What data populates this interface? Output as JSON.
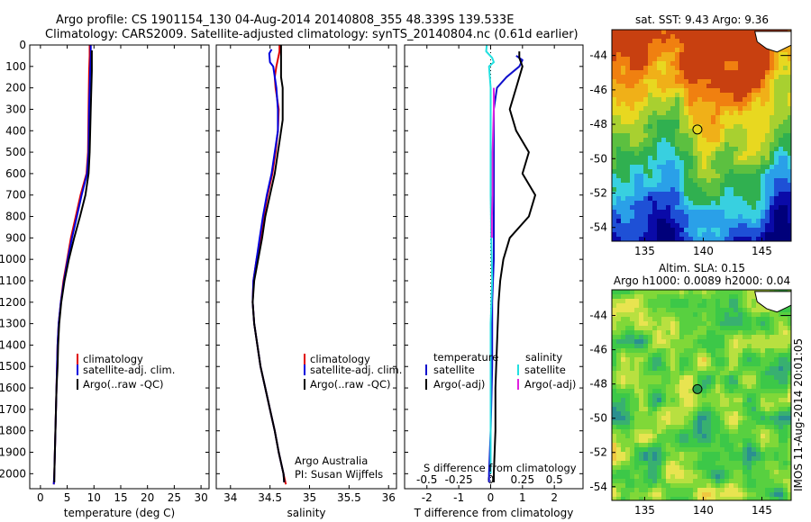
{
  "figure": {
    "title_line1": "Argo profile: CS 1901154_130 04-Aug-2014 20140808_355 48.339S 139.533E",
    "title_line2": "Climatology: CARS2009. Satellite-adjusted climatology: synTS_20140804.nc (0.61d earlier)",
    "side_stamp": "IMOS 11-Aug-2014 20:01:05",
    "credit_line1": "Argo Australia",
    "credit_line2": "PI: Susan Wijffels"
  },
  "colors": {
    "climatology": "#e00000",
    "satellite_adj": "#0000dd",
    "argo": "#000000",
    "t_satellite": "#1010cc",
    "s_satellite": "#22e0e0",
    "s_argo": "#e020e0"
  },
  "chart_data": [
    {
      "id": "temperature",
      "type": "line",
      "xlabel": "temperature (deg C)",
      "xticks": [
        0,
        5,
        10,
        15,
        20,
        25,
        30
      ],
      "xlim": [
        -2,
        31.5
      ],
      "ylim": [
        2070,
        0
      ],
      "yticks": [
        0,
        100,
        200,
        300,
        400,
        500,
        600,
        700,
        800,
        900,
        1000,
        1100,
        1200,
        1300,
        1400,
        1500,
        1600,
        1700,
        1800,
        1900,
        2000
      ],
      "legend": [
        "climatology",
        "satellite-adj. clim.",
        "Argo(..raw -QC)"
      ],
      "series": [
        {
          "key": "climatology",
          "color": "#e00000",
          "points": [
            [
              9.2,
              0
            ],
            [
              9.2,
              50
            ],
            [
              9.1,
              120
            ],
            [
              9.0,
              300
            ],
            [
              8.9,
              500
            ],
            [
              8.6,
              600
            ],
            [
              7.5,
              700
            ],
            [
              6.6,
              800
            ],
            [
              5.7,
              900
            ],
            [
              5.0,
              1000
            ],
            [
              4.3,
              1100
            ],
            [
              3.8,
              1200
            ],
            [
              3.4,
              1300
            ],
            [
              3.2,
              1400
            ],
            [
              3.1,
              1500
            ],
            [
              3.0,
              1600
            ],
            [
              2.9,
              1700
            ],
            [
              2.8,
              1800
            ],
            [
              2.7,
              1900
            ],
            [
              2.6,
              2000
            ],
            [
              2.5,
              2050
            ]
          ]
        },
        {
          "key": "satellite_adj",
          "color": "#0000dd",
          "points": [
            [
              9.4,
              0
            ],
            [
              9.4,
              50
            ],
            [
              9.3,
              120
            ],
            [
              9.1,
              300
            ],
            [
              9.0,
              500
            ],
            [
              8.7,
              600
            ],
            [
              7.7,
              700
            ],
            [
              6.8,
              800
            ],
            [
              5.9,
              900
            ],
            [
              5.1,
              1000
            ],
            [
              4.4,
              1100
            ],
            [
              3.8,
              1200
            ],
            [
              3.4,
              1300
            ],
            [
              3.2,
              1400
            ],
            [
              3.1,
              1500
            ],
            [
              3.0,
              1600
            ],
            [
              2.9,
              1700
            ],
            [
              2.8,
              1800
            ],
            [
              2.7,
              1900
            ],
            [
              2.6,
              2000
            ],
            [
              2.5,
              2050
            ]
          ]
        },
        {
          "key": "argo",
          "color": "#000000",
          "points": [
            [
              9.6,
              25
            ],
            [
              9.6,
              120
            ],
            [
              9.4,
              300
            ],
            [
              9.2,
              500
            ],
            [
              9.0,
              600
            ],
            [
              8.4,
              700
            ],
            [
              7.4,
              800
            ],
            [
              6.3,
              900
            ],
            [
              5.3,
              1000
            ],
            [
              4.5,
              1100
            ],
            [
              3.9,
              1200
            ],
            [
              3.5,
              1300
            ],
            [
              3.3,
              1400
            ],
            [
              3.2,
              1500
            ],
            [
              3.0,
              1600
            ],
            [
              2.9,
              1700
            ],
            [
              2.8,
              1800
            ],
            [
              2.7,
              1900
            ],
            [
              2.6,
              2000
            ],
            [
              2.6,
              2040
            ]
          ]
        }
      ]
    },
    {
      "id": "salinity",
      "type": "line",
      "xlabel": "salinity",
      "xticks": [
        34,
        34.5,
        35,
        35.5,
        36
      ],
      "xlim": [
        33.82,
        36.1
      ],
      "ylim": [
        2070,
        0
      ],
      "legend": [
        "climatology",
        "satellite-adj. clim.",
        "Argo(..raw -QC)"
      ],
      "series": [
        {
          "key": "climatology",
          "color": "#e00000",
          "points": [
            [
              34.62,
              0
            ],
            [
              34.62,
              30
            ],
            [
              34.58,
              100
            ],
            [
              34.56,
              150
            ],
            [
              34.57,
              200
            ],
            [
              34.61,
              300
            ],
            [
              34.6,
              400
            ],
            [
              34.57,
              500
            ],
            [
              34.53,
              600
            ],
            [
              34.47,
              700
            ],
            [
              34.42,
              800
            ],
            [
              34.38,
              900
            ],
            [
              34.33,
              1000
            ],
            [
              34.29,
              1100
            ],
            [
              34.28,
              1200
            ],
            [
              34.3,
              1300
            ],
            [
              34.34,
              1400
            ],
            [
              34.38,
              1500
            ],
            [
              34.44,
              1600
            ],
            [
              34.5,
              1700
            ],
            [
              34.56,
              1800
            ],
            [
              34.61,
              1900
            ],
            [
              34.67,
              2000
            ],
            [
              34.7,
              2050
            ]
          ]
        },
        {
          "key": "satellite_adj",
          "color": "#0000dd",
          "points": [
            [
              34.52,
              20
            ],
            [
              34.49,
              40
            ],
            [
              34.5,
              80
            ],
            [
              34.54,
              100
            ],
            [
              34.58,
              200
            ],
            [
              34.6,
              300
            ],
            [
              34.6,
              400
            ],
            [
              34.56,
              500
            ],
            [
              34.52,
              600
            ],
            [
              34.46,
              700
            ],
            [
              34.41,
              800
            ],
            [
              34.37,
              900
            ],
            [
              34.33,
              1000
            ],
            [
              34.29,
              1100
            ],
            [
              34.28,
              1200
            ],
            [
              34.3,
              1300
            ],
            [
              34.34,
              1400
            ],
            [
              34.38,
              1500
            ],
            [
              34.44,
              1600
            ],
            [
              34.5,
              1700
            ],
            [
              34.56,
              1800
            ],
            [
              34.61,
              1900
            ],
            [
              34.67,
              2000
            ],
            [
              34.68,
              2040
            ]
          ]
        },
        {
          "key": "argo",
          "color": "#000000",
          "points": [
            [
              34.64,
              0
            ],
            [
              34.64,
              150
            ],
            [
              34.66,
              200
            ],
            [
              34.66,
              350
            ],
            [
              34.62,
              450
            ],
            [
              34.6,
              500
            ],
            [
              34.56,
              600
            ],
            [
              34.5,
              700
            ],
            [
              34.44,
              800
            ],
            [
              34.4,
              900
            ],
            [
              34.35,
              1000
            ],
            [
              34.3,
              1100
            ],
            [
              34.28,
              1200
            ],
            [
              34.3,
              1300
            ],
            [
              34.34,
              1400
            ],
            [
              34.38,
              1500
            ],
            [
              34.44,
              1600
            ],
            [
              34.5,
              1700
            ],
            [
              34.56,
              1800
            ],
            [
              34.61,
              1900
            ],
            [
              34.67,
              2000
            ],
            [
              34.68,
              2040
            ]
          ]
        }
      ]
    },
    {
      "id": "difference",
      "type": "line",
      "xlabel": "T difference from climatology",
      "xlabel_top": "S difference from climatology",
      "xticks": [
        -2,
        -1,
        0,
        1,
        2
      ],
      "xticks_s": [
        "-0.5",
        "-0.25",
        "0",
        "0.25",
        "0.5"
      ],
      "xlim": [
        -2.7,
        2.9
      ],
      "ylim": [
        2070,
        0
      ],
      "legend_temperature_heading": "temperature",
      "legend_salinity_heading": "salinity",
      "legend_satellite": "satellite",
      "legend_argo": "Argo(-adj)",
      "series": [
        {
          "key": "t_satellite",
          "color": "#1010cc",
          "points": [
            [
              0.8,
              50
            ],
            [
              1.0,
              70
            ],
            [
              0.9,
              100
            ],
            [
              0.5,
              150
            ],
            [
              0.2,
              200
            ],
            [
              0.1,
              300
            ],
            [
              0.1,
              500
            ],
            [
              0.1,
              800
            ],
            [
              0.1,
              1000
            ],
            [
              0.05,
              1200
            ],
            [
              0.05,
              1500
            ],
            [
              0,
              1800
            ],
            [
              -0.05,
              2000
            ],
            [
              -0.05,
              2040
            ]
          ]
        },
        {
          "key": "t_argo",
          "color": "#000000",
          "points": [
            [
              0.9,
              30
            ],
            [
              0.9,
              60
            ],
            [
              1.0,
              100
            ],
            [
              0.8,
              200
            ],
            [
              0.6,
              300
            ],
            [
              0.8,
              400
            ],
            [
              1.2,
              500
            ],
            [
              1.0,
              600
            ],
            [
              1.4,
              700
            ],
            [
              1.2,
              800
            ],
            [
              0.6,
              900
            ],
            [
              0.4,
              1000
            ],
            [
              0.3,
              1100
            ],
            [
              0.25,
              1200
            ],
            [
              0.2,
              1400
            ],
            [
              0.15,
              1600
            ],
            [
              0.15,
              1800
            ],
            [
              0.1,
              2000
            ],
            [
              0.1,
              2040
            ]
          ]
        },
        {
          "key": "s_satellite",
          "color": "#22e0e0",
          "points": [
            [
              -0.12,
              0
            ],
            [
              -0.14,
              30
            ],
            [
              0.05,
              60
            ],
            [
              0.1,
              80
            ],
            [
              -0.05,
              100
            ],
            [
              0.0,
              200
            ],
            [
              0.0,
              300
            ],
            [
              0.0,
              500
            ],
            [
              0.0,
              700
            ],
            [
              0.02,
              900
            ],
            [
              0.05,
              1100
            ],
            [
              0.0,
              1300
            ],
            [
              0.0,
              1500
            ],
            [
              0.0,
              1700
            ],
            [
              0.0,
              1900
            ],
            [
              0.0,
              2000
            ]
          ]
        },
        {
          "key": "s_argo",
          "color": "#e020e0",
          "points": [
            [
              0.1,
              200
            ],
            [
              0.1,
              300
            ],
            [
              0.08,
              400
            ],
            [
              0.06,
              500
            ],
            [
              0.06,
              600
            ],
            [
              0.06,
              700
            ],
            [
              0.04,
              800
            ],
            [
              0.04,
              900
            ]
          ]
        }
      ]
    },
    {
      "id": "sst_map",
      "type": "heatmap",
      "title": "sat. SST: 9.43 Argo: 9.36",
      "xticks": [
        135,
        140,
        145
      ],
      "yticks": [
        -44,
        -46,
        -48,
        -50,
        -52,
        -54
      ],
      "xlim": [
        132.2,
        147.5
      ],
      "ylim": [
        -54.8,
        -42.5
      ],
      "marker": {
        "lon": 139.5,
        "lat": -48.3
      }
    },
    {
      "id": "sla_map",
      "type": "heatmap",
      "title_line1": "Altim. SLA: 0.15",
      "title_line2": "Argo h1000: 0.0089 h2000: 0.04",
      "xticks": [
        135,
        140,
        145
      ],
      "yticks": [
        -44,
        -46,
        -48,
        -50,
        -52,
        -54
      ],
      "xlim": [
        132.2,
        147.5
      ],
      "ylim": [
        -54.8,
        -42.5
      ],
      "marker": {
        "lon": 139.5,
        "lat": -48.3
      }
    }
  ]
}
